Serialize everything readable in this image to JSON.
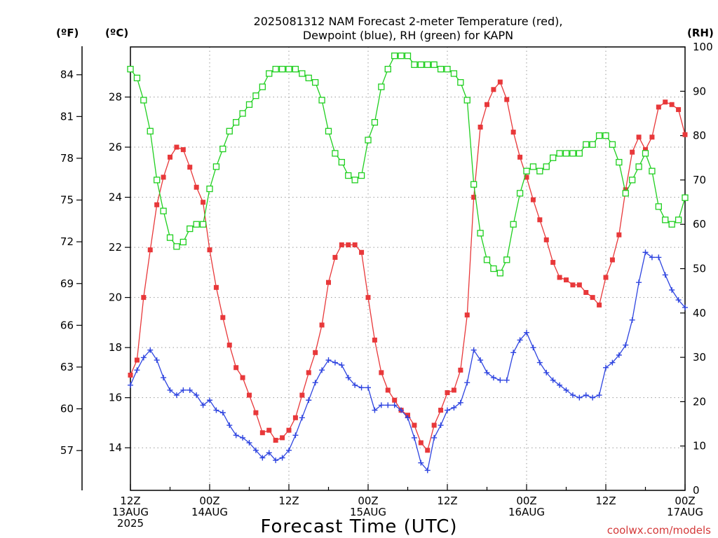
{
  "chart_data": {
    "type": "line",
    "title_line1": "2025081312 NAM Forecast 2-meter Temperature (red),",
    "title_line2": "Dewpoint (blue), RH (green) for KAPN",
    "unit_f": "(ºF)",
    "unit_c": "(ºC)",
    "unit_rh": "(RH)",
    "xlabel": "Forecast Time (UTC)",
    "credit": "coolwx.com/models",
    "x_unit": "forecast hour",
    "xlim": [
      0,
      84
    ],
    "c_lim": [
      12.3,
      30.0
    ],
    "rh_lim": [
      0,
      100
    ],
    "f_ticks": [
      "57",
      "60",
      "63",
      "66",
      "69",
      "72",
      "75",
      "78",
      "81",
      "84"
    ],
    "c_ticks": [
      "14",
      "16",
      "18",
      "20",
      "22",
      "24",
      "26",
      "28"
    ],
    "rh_ticks": [
      "0",
      "10",
      "20",
      "30",
      "40",
      "50",
      "60",
      "70",
      "80",
      "90",
      "100"
    ],
    "x_ticks": [
      {
        "hour": 0,
        "line1": "12Z",
        "line2": "13AUG",
        "line3": "2025"
      },
      {
        "hour": 12,
        "line1": "00Z",
        "line2": "14AUG",
        "line3": ""
      },
      {
        "hour": 24,
        "line1": "12Z",
        "line2": "",
        "line3": ""
      },
      {
        "hour": 36,
        "line1": "00Z",
        "line2": "15AUG",
        "line3": ""
      },
      {
        "hour": 48,
        "line1": "12Z",
        "line2": "",
        "line3": ""
      },
      {
        "hour": 60,
        "line1": "00Z",
        "line2": "16AUG",
        "line3": ""
      },
      {
        "hour": 72,
        "line1": "12Z",
        "line2": "",
        "line3": ""
      },
      {
        "hour": 84,
        "line1": "00Z",
        "line2": "17AUG",
        "line3": ""
      }
    ],
    "grid": true,
    "series": [
      {
        "name": "Temperature",
        "axis": "c",
        "color": "#e8383a",
        "marker": "filled-square",
        "x": [
          0,
          1,
          2,
          3,
          4,
          5,
          6,
          7,
          8,
          9,
          10,
          11,
          12,
          13,
          14,
          15,
          16,
          17,
          18,
          19,
          20,
          21,
          22,
          23,
          24,
          25,
          26,
          27,
          28,
          29,
          30,
          31,
          32,
          33,
          34,
          35,
          36,
          37,
          38,
          39,
          40,
          41,
          42,
          43,
          44,
          45,
          46,
          47,
          48,
          49,
          50,
          51,
          52,
          53,
          54,
          55,
          56,
          57,
          58,
          59,
          60,
          61,
          62,
          63,
          64,
          65,
          66,
          67,
          68,
          69,
          70,
          71,
          72,
          73,
          74,
          75,
          76,
          77,
          78,
          79,
          80,
          81,
          82,
          83,
          84
        ],
        "y": [
          16.9,
          17.5,
          20.0,
          21.9,
          23.7,
          24.8,
          25.6,
          26.0,
          25.9,
          25.2,
          24.4,
          23.8,
          21.9,
          20.4,
          19.2,
          18.1,
          17.2,
          16.8,
          16.1,
          15.4,
          14.6,
          14.7,
          14.3,
          14.4,
          14.7,
          15.2,
          16.1,
          17.0,
          17.8,
          18.9,
          20.6,
          21.6,
          22.1,
          22.1,
          22.1,
          21.8,
          20.0,
          18.3,
          17.0,
          16.3,
          15.9,
          15.5,
          15.3,
          14.9,
          14.2,
          13.9,
          14.9,
          15.5,
          16.2,
          16.3,
          17.1,
          19.3,
          24.0,
          26.8,
          27.7,
          28.3,
          28.6,
          27.9,
          26.6,
          25.6,
          24.8,
          23.9,
          23.1,
          22.3,
          21.4,
          20.8,
          20.7,
          20.5,
          20.5,
          20.2,
          20.0,
          19.7,
          20.8,
          21.5,
          22.5,
          24.3,
          25.8,
          26.4,
          25.9,
          26.4,
          27.6,
          27.8,
          27.7,
          27.5,
          26.5
        ]
      },
      {
        "name": "Dewpoint",
        "axis": "c",
        "color": "#2e44e0",
        "marker": "plus",
        "x": [
          0,
          1,
          2,
          3,
          4,
          5,
          6,
          7,
          8,
          9,
          10,
          11,
          12,
          13,
          14,
          15,
          16,
          17,
          18,
          19,
          20,
          21,
          22,
          23,
          24,
          25,
          26,
          27,
          28,
          29,
          30,
          31,
          32,
          33,
          34,
          35,
          36,
          37,
          38,
          39,
          40,
          41,
          42,
          43,
          44,
          45,
          46,
          47,
          48,
          49,
          50,
          51,
          52,
          53,
          54,
          55,
          56,
          57,
          58,
          59,
          60,
          61,
          62,
          63,
          64,
          65,
          66,
          67,
          68,
          69,
          70,
          71,
          72,
          73,
          74,
          75,
          76,
          77,
          78,
          79,
          80,
          81,
          82,
          83,
          84
        ],
        "y": [
          16.5,
          17.1,
          17.6,
          17.9,
          17.5,
          16.8,
          16.3,
          16.1,
          16.3,
          16.3,
          16.1,
          15.7,
          15.9,
          15.5,
          15.4,
          14.9,
          14.5,
          14.4,
          14.2,
          13.9,
          13.6,
          13.8,
          13.5,
          13.6,
          13.9,
          14.5,
          15.2,
          15.9,
          16.6,
          17.1,
          17.5,
          17.4,
          17.3,
          16.8,
          16.5,
          16.4,
          16.4,
          15.5,
          15.7,
          15.7,
          15.7,
          15.5,
          15.2,
          14.4,
          13.4,
          13.1,
          14.4,
          14.9,
          15.5,
          15.6,
          15.8,
          16.6,
          17.9,
          17.5,
          17.0,
          16.8,
          16.7,
          16.7,
          17.8,
          18.3,
          18.6,
          18.0,
          17.4,
          17.0,
          16.7,
          16.5,
          16.3,
          16.1,
          16.0,
          16.1,
          16.0,
          16.1,
          17.2,
          17.4,
          17.7,
          18.1,
          19.1,
          20.6,
          21.8,
          21.6,
          21.6,
          20.9,
          20.3,
          19.9,
          19.6
        ]
      },
      {
        "name": "RH",
        "axis": "rh",
        "color": "#1fcf1f",
        "marker": "open-square",
        "x": [
          0,
          1,
          2,
          3,
          4,
          5,
          6,
          7,
          8,
          9,
          10,
          11,
          12,
          13,
          14,
          15,
          16,
          17,
          18,
          19,
          20,
          21,
          22,
          23,
          24,
          25,
          26,
          27,
          28,
          29,
          30,
          31,
          32,
          33,
          34,
          35,
          36,
          37,
          38,
          39,
          40,
          41,
          42,
          43,
          44,
          45,
          46,
          47,
          48,
          49,
          50,
          51,
          52,
          53,
          54,
          55,
          56,
          57,
          58,
          59,
          60,
          61,
          62,
          63,
          64,
          65,
          66,
          67,
          68,
          69,
          70,
          71,
          72,
          73,
          74,
          75,
          76,
          77,
          78,
          79,
          80,
          81,
          82,
          83,
          84
        ],
        "y": [
          95,
          93,
          88,
          81,
          70,
          63,
          57,
          55,
          56,
          59,
          60,
          60,
          68,
          73,
          77,
          81,
          83,
          85,
          87,
          89,
          91,
          94,
          95,
          95,
          95,
          95,
          94,
          93,
          92,
          88,
          81,
          76,
          74,
          71,
          70,
          71,
          79,
          83,
          91,
          95,
          98,
          98,
          98,
          96,
          96,
          96,
          96,
          95,
          95,
          94,
          92,
          88,
          69,
          58,
          52,
          50,
          49,
          52,
          60,
          67,
          72,
          73,
          72,
          73,
          75,
          76,
          76,
          76,
          76,
          78,
          78,
          80,
          80,
          78,
          74,
          67,
          70,
          73,
          76,
          72,
          64,
          61,
          60,
          61,
          66
        ]
      }
    ]
  }
}
